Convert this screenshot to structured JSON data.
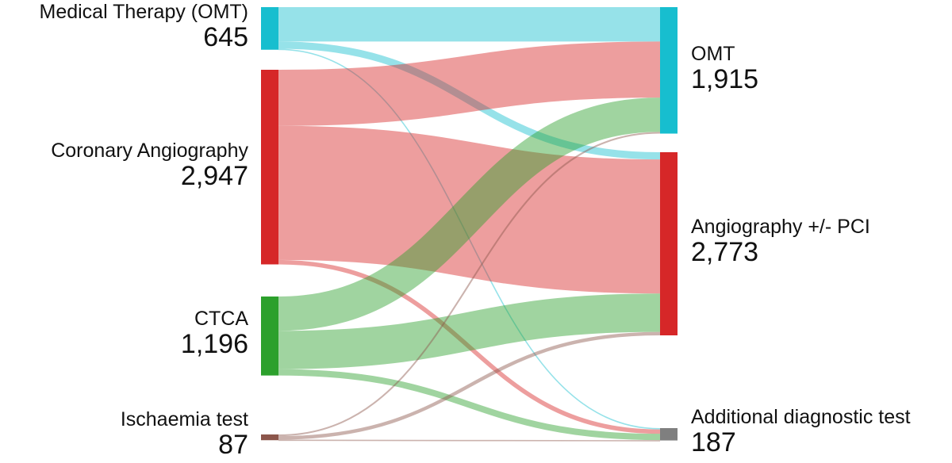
{
  "chart_data": {
    "type": "sankey",
    "title": "",
    "sources": [
      {
        "id": "omt_src",
        "label": "Medical Therapy (OMT)",
        "value_label": "645",
        "value": 645,
        "color": "#17becf"
      },
      {
        "id": "cag_src",
        "label": "Coronary Angiography",
        "value_label": "2,947",
        "value": 2947,
        "color": "#d62728"
      },
      {
        "id": "ctca_src",
        "label": "CTCA",
        "value_label": "1,196",
        "value": 1196,
        "color": "#2ca02c"
      },
      {
        "id": "isch_src",
        "label": "Ischaemia test",
        "value_label": "87",
        "value": 87,
        "color": "#8c564b"
      }
    ],
    "targets": [
      {
        "id": "omt_dst",
        "label": "OMT",
        "value_label": "1,915",
        "value": 1915,
        "color": "#17becf"
      },
      {
        "id": "pci_dst",
        "label": "Angiography +/- PCI",
        "value_label": "2,773",
        "value": 2773,
        "color": "#d62728"
      },
      {
        "id": "add_dst",
        "label": "Additional diagnostic test",
        "value_label": "187",
        "value": 187,
        "color": "#7f7f7f"
      }
    ],
    "flows": [
      {
        "source": "omt_src",
        "target": "omt_dst",
        "value": 520
      },
      {
        "source": "omt_src",
        "target": "pci_dst",
        "value": 110
      },
      {
        "source": "omt_src",
        "target": "add_dst",
        "value": 15
      },
      {
        "source": "cag_src",
        "target": "omt_dst",
        "value": 850
      },
      {
        "source": "cag_src",
        "target": "pci_dst",
        "value": 2030
      },
      {
        "source": "cag_src",
        "target": "add_dst",
        "value": 67
      },
      {
        "source": "ctca_src",
        "target": "omt_dst",
        "value": 520
      },
      {
        "source": "ctca_src",
        "target": "pci_dst",
        "value": 580
      },
      {
        "source": "ctca_src",
        "target": "add_dst",
        "value": 96
      },
      {
        "source": "isch_src",
        "target": "omt_dst",
        "value": 25
      },
      {
        "source": "isch_src",
        "target": "pci_dst",
        "value": 53
      },
      {
        "source": "isch_src",
        "target": "add_dst",
        "value": 9
      }
    ]
  }
}
